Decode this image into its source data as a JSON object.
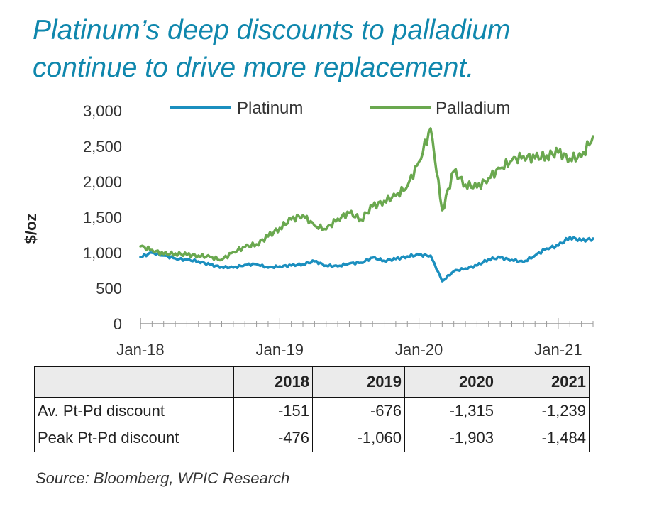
{
  "title_lines": [
    "Platinum’s deep discounts to palladium",
    "continue to drive more replacement."
  ],
  "source": "Source: Bloomberg, WPIC Research",
  "colors": {
    "platinum": "#1b8fbf",
    "palladium": "#6aa84f",
    "title": "#0f87ad",
    "axis": "#9a9a9a"
  },
  "chart_data": {
    "type": "line",
    "ylabel": "$/oz",
    "ylim": [
      0,
      3000
    ],
    "yticks": [
      "0",
      "500",
      "1,000",
      "1,500",
      "2,000",
      "2,500",
      "3,000"
    ],
    "xtick_labels": [
      "Jan-18",
      "Jan-19",
      "Jan-20",
      "Jan-21"
    ],
    "xlim": [
      "2018-01",
      "2021-04"
    ],
    "legend_position": "top",
    "grid": false,
    "series": [
      {
        "name": "Platinum",
        "color": "#1b8fbf",
        "points": [
          [
            "2018-01",
            940
          ],
          [
            "2018-02",
            1000
          ],
          [
            "2018-03",
            960
          ],
          [
            "2018-04",
            920
          ],
          [
            "2018-05",
            900
          ],
          [
            "2018-06",
            880
          ],
          [
            "2018-07",
            830
          ],
          [
            "2018-08",
            800
          ],
          [
            "2018-09",
            790
          ],
          [
            "2018-10",
            830
          ],
          [
            "2018-11",
            840
          ],
          [
            "2018-12",
            790
          ],
          [
            "2019-01",
            810
          ],
          [
            "2019-02",
            820
          ],
          [
            "2019-03",
            840
          ],
          [
            "2019-04",
            880
          ],
          [
            "2019-05",
            820
          ],
          [
            "2019-06",
            810
          ],
          [
            "2019-07",
            850
          ],
          [
            "2019-08",
            860
          ],
          [
            "2019-09",
            930
          ],
          [
            "2019-10",
            890
          ],
          [
            "2019-11",
            910
          ],
          [
            "2019-12",
            950
          ],
          [
            "2020-01",
            970
          ],
          [
            "2020-02",
            960
          ],
          [
            "2020-03",
            600
          ],
          [
            "2020-04",
            740
          ],
          [
            "2020-05",
            780
          ],
          [
            "2020-06",
            820
          ],
          [
            "2020-07",
            910
          ],
          [
            "2020-08",
            930
          ],
          [
            "2020-09",
            900
          ],
          [
            "2020-10",
            870
          ],
          [
            "2020-11",
            960
          ],
          [
            "2020-12",
            1060
          ],
          [
            "2021-01",
            1100
          ],
          [
            "2021-02",
            1220
          ],
          [
            "2021-03",
            1170
          ],
          [
            "2021-04",
            1200
          ]
        ]
      },
      {
        "name": "Palladium",
        "color": "#6aa84f",
        "points": [
          [
            "2018-01",
            1090
          ],
          [
            "2018-02",
            1040
          ],
          [
            "2018-03",
            980
          ],
          [
            "2018-04",
            990
          ],
          [
            "2018-05",
            970
          ],
          [
            "2018-06",
            960
          ],
          [
            "2018-07",
            940
          ],
          [
            "2018-08",
            900
          ],
          [
            "2018-09",
            1010
          ],
          [
            "2018-10",
            1080
          ],
          [
            "2018-11",
            1120
          ],
          [
            "2018-12",
            1230
          ],
          [
            "2019-01",
            1350
          ],
          [
            "2019-02",
            1470
          ],
          [
            "2019-03",
            1530
          ],
          [
            "2019-04",
            1380
          ],
          [
            "2019-05",
            1330
          ],
          [
            "2019-06",
            1480
          ],
          [
            "2019-07",
            1560
          ],
          [
            "2019-08",
            1470
          ],
          [
            "2019-09",
            1650
          ],
          [
            "2019-10",
            1730
          ],
          [
            "2019-11",
            1800
          ],
          [
            "2019-12",
            1940
          ],
          [
            "2020-01",
            2280
          ],
          [
            "2020-02",
            2750
          ],
          [
            "2020-03",
            1600
          ],
          [
            "2020-04",
            2150
          ],
          [
            "2020-05",
            1960
          ],
          [
            "2020-06",
            1920
          ],
          [
            "2020-07",
            2050
          ],
          [
            "2020-08",
            2190
          ],
          [
            "2020-09",
            2300
          ],
          [
            "2020-10",
            2360
          ],
          [
            "2020-11",
            2330
          ],
          [
            "2020-12",
            2370
          ],
          [
            "2021-01",
            2410
          ],
          [
            "2021-02",
            2330
          ],
          [
            "2021-03",
            2350
          ],
          [
            "2021-04",
            2640
          ]
        ]
      }
    ]
  },
  "table": {
    "headers": [
      "",
      "2018",
      "2019",
      "2020",
      "2021"
    ],
    "rows": [
      {
        "label": "Av. Pt-Pd discount",
        "values": [
          "-151",
          "-676",
          "-1,315",
          "-1,239"
        ]
      },
      {
        "label": "Peak Pt-Pd discount",
        "values": [
          "-476",
          "-1,060",
          "-1,903",
          "-1,484"
        ]
      }
    ]
  }
}
